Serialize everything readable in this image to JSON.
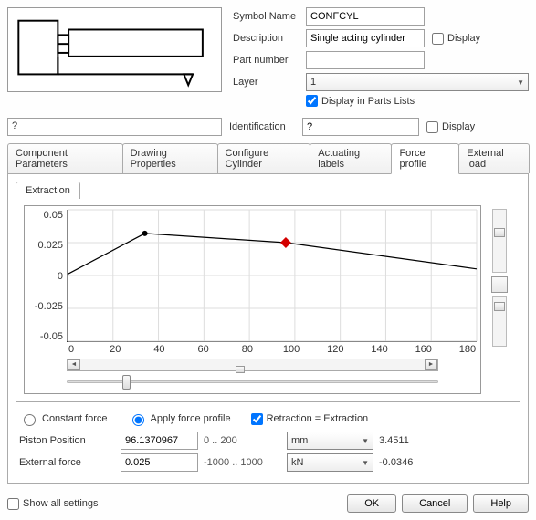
{
  "header": {
    "symbol_name_label": "Symbol Name",
    "symbol_name": "CONFCYL",
    "description_label": "Description",
    "description": "Single acting cylinder",
    "display_label": "Display",
    "display_checked": false,
    "part_number_label": "Part number",
    "part_number": "",
    "layer_label": "Layer",
    "layer_value": "1",
    "display_parts_label": "Display in Parts Lists",
    "display_parts_checked": true
  },
  "identification": {
    "left_value": "?",
    "label": "Identification",
    "value": "?",
    "display_label": "Display",
    "display_checked": false
  },
  "tabs": {
    "t0": "Component Parameters",
    "t1": "Drawing Properties",
    "t2": "Configure Cylinder",
    "t3": "Actuating labels",
    "t4": "Force profile",
    "t5": "External load",
    "active": 4
  },
  "subtab": {
    "label": "Extraction"
  },
  "chart": {
    "y_ticks": [
      "0.05",
      "0.025",
      "0",
      "-0.025",
      "-0.05"
    ],
    "x_ticks": [
      "0",
      "20",
      "40",
      "60",
      "80",
      "100",
      "120",
      "140",
      "160",
      "180"
    ],
    "ylim": [
      -0.05,
      0.05
    ],
    "xlim": [
      0,
      180
    ],
    "grid_color": "#dddddd",
    "line_color": "#000000",
    "bg_color": "#ffffff",
    "line_width": 1.2,
    "points": [
      {
        "x": 0,
        "y": 0.001
      },
      {
        "x": 34,
        "y": 0.032
      },
      {
        "x": 96,
        "y": 0.025
      },
      {
        "x": 180,
        "y": 0.005
      }
    ],
    "markers": [
      {
        "x": 34,
        "y": 0.032,
        "shape": "circle",
        "color": "#000000",
        "size": 3
      },
      {
        "x": 96,
        "y": 0.025,
        "shape": "diamond",
        "color": "#d40000",
        "size": 6
      }
    ]
  },
  "options": {
    "constant_force": "Constant force",
    "constant_force_selected": false,
    "apply_profile": "Apply force profile",
    "apply_profile_selected": true,
    "retraction_eq": "Retraction = Extraction",
    "retraction_checked": true
  },
  "piston": {
    "label": "Piston Position",
    "value": "96.1370967",
    "range": "0 .. 200",
    "unit": "mm",
    "end": "3.4511"
  },
  "force": {
    "label": "External force",
    "value": "0.025",
    "range": "-1000 .. 1000",
    "unit": "kN",
    "end": "-0.0346"
  },
  "footer": {
    "show_all": "Show all settings",
    "show_all_checked": false,
    "ok": "OK",
    "cancel": "Cancel",
    "help": "Help"
  }
}
